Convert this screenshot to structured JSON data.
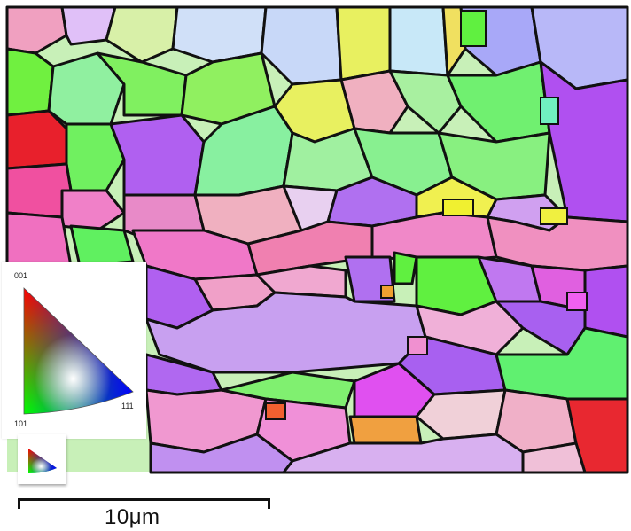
{
  "legend": {
    "corner_top": "001",
    "corner_bottom": "101",
    "corner_right": "111"
  },
  "scale": {
    "label": "10μm"
  },
  "colors": {
    "boundary": "#111111",
    "red": "#e8202c",
    "green": "#5cf04c",
    "blue": "#1e20e0",
    "purple": "#b65cf0",
    "magenta": "#e87ad8",
    "pink": "#f08cb8",
    "lavender": "#d8c8f8",
    "lightblue": "#c8d8f8",
    "yellow": "#f0f040"
  }
}
